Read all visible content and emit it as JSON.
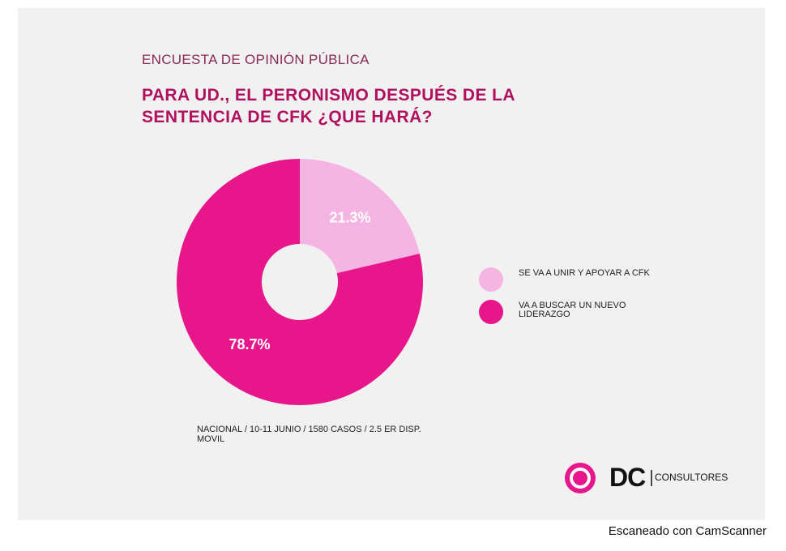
{
  "chart_data": {
    "type": "pie",
    "subtitle": "ENCUESTA DE OPINIÓN PÚBLICA",
    "title": "PARA UD., EL PERONISMO DESPUÉS DE LA SENTENCIA DE CFK ¿QUE HARÁ?",
    "categories": [
      "SE VA A UNIR Y APOYAR A CFK",
      "VA A BUSCAR UN NUEVO LIDERAZGO"
    ],
    "values": [
      21.3,
      78.7
    ],
    "value_labels": [
      "21.3%",
      "78.7%"
    ],
    "colors": [
      "#f5b5e2",
      "#e8168b"
    ],
    "donut": true,
    "source": "NACIONAL / 10-11 JUNIO / 1580 CASOS / 2.5 ER DISP. MOVIL",
    "brand": "DC",
    "brand_suffix": "CONSULTORES",
    "watermark": "Escaneado con CamScanner"
  }
}
